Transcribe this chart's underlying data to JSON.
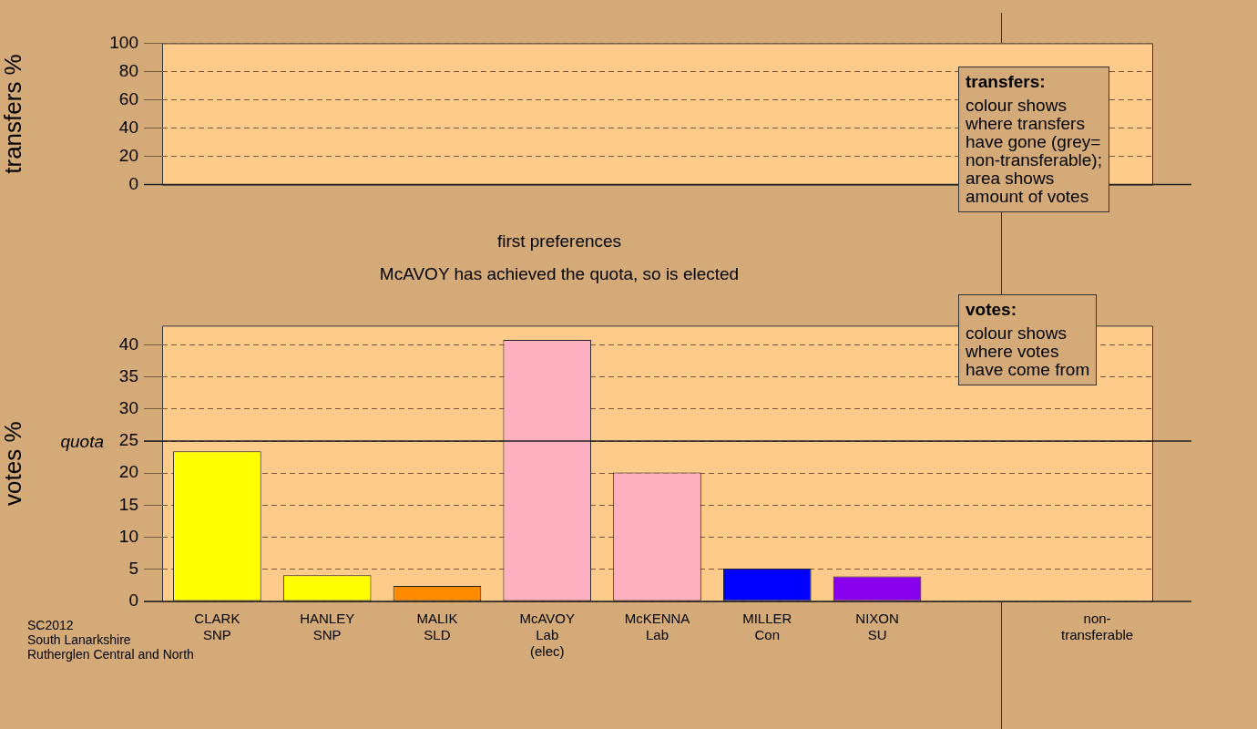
{
  "chart_data": [
    {
      "type": "bar",
      "ylabel": "transfers %",
      "categories": [
        null,
        null,
        null,
        null,
        null,
        null,
        null,
        null,
        null
      ],
      "values": [
        null,
        null,
        null,
        null,
        null,
        null,
        null,
        null,
        null
      ],
      "ylim": [
        0,
        100
      ],
      "yticks": [
        0,
        20,
        40,
        60,
        80,
        100
      ],
      "grid": true,
      "legend": false,
      "tick_labels": "y",
      "annotations": [
        "transfers:\ncolour shows\nwhere transfers\nhave gone (grey=\nnon-transferable);\narea shows\namount of votes"
      ]
    },
    {
      "type": "bar",
      "title": "first preferences",
      "subtitle": "McAVOY has achieved the quota, so is elected",
      "ylabel": "votes %",
      "categories": [
        "CLARK\nSNP",
        "HANLEY\nSNP",
        "MALIK\nSLD",
        "McAVOY\nLab\n(elec)",
        "McKENNA\nLab",
        "MILLER\nCon",
        "NIXON\nSU",
        null,
        "non-\ntransferable"
      ],
      "values": [
        23.4,
        4.1,
        2.4,
        40.8,
        20.1,
        5.1,
        3.9,
        null,
        null
      ],
      "colors": [
        "#ffff00",
        "#ffff00",
        "#ff8c00",
        "#ffb0c0",
        "#ffb0c0",
        "#0000ff",
        "#8800ee",
        "#888888",
        "#888888"
      ],
      "ylim": [
        0,
        43
      ],
      "yticks": [
        0,
        5,
        10,
        15,
        20,
        25,
        30,
        35,
        40
      ],
      "grid": true,
      "legend": false,
      "ref_lines": [
        {
          "axis": "y",
          "value": 25,
          "label": "quota"
        }
      ],
      "annotations": [
        "votes:\ncolour shows\nwhere votes\nhave come from",
        "SC2012\nSouth Lanarkshire\nRutherglen Central and North"
      ]
    }
  ]
}
